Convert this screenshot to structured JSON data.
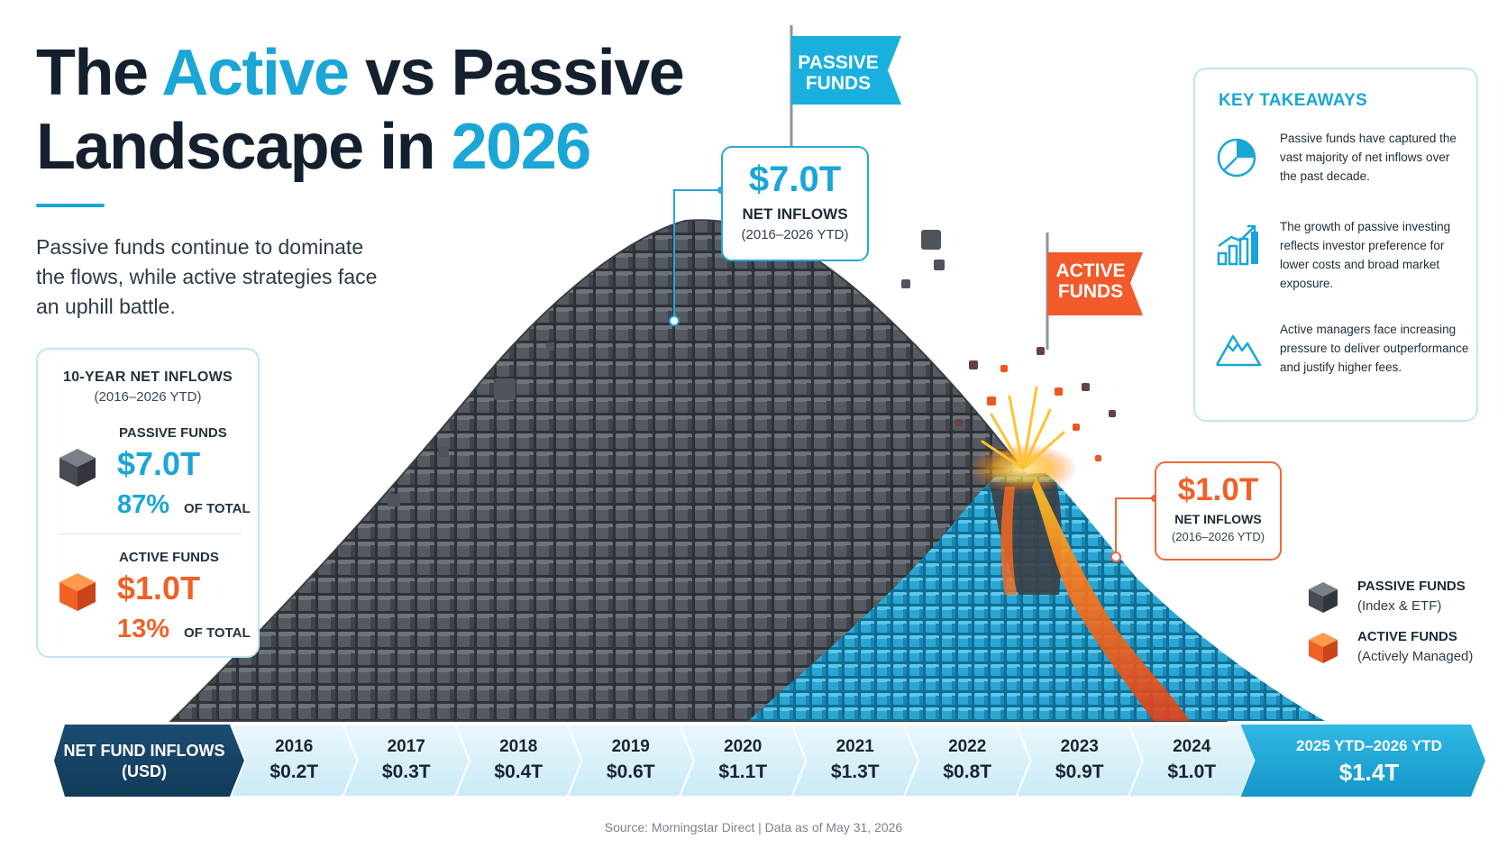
{
  "title": {
    "part1": "The ",
    "accent1": "Active",
    "part2": " vs Passive",
    "line2": "Landscape in ",
    "accent2": "2026"
  },
  "subtitle": "Passive funds continue to dominate the flows, while active strategies face an uphill battle.",
  "stats_card": {
    "heading": "10-YEAR NET INFLOWS",
    "subheading": "(2016–2026 YTD)",
    "passive": {
      "label": "PASSIVE FUNDS",
      "value": "$7.0T",
      "percent": "87%",
      "percent_suffix": "OF TOTAL"
    },
    "active": {
      "label": "ACTIVE FUNDS",
      "value": "$1.0T",
      "percent": "13%",
      "percent_suffix": "OF TOTAL"
    }
  },
  "flags": {
    "passive": "PASSIVE FUNDS",
    "active": "ACTIVE FUNDS"
  },
  "callouts": {
    "passive": {
      "value": "$7.0T",
      "label": "NET INFLOWS",
      "sub": "(2016–2026 YTD)"
    },
    "active": {
      "value": "$1.0T",
      "label": "NET INFLOWS",
      "sub": "(2016–2026 YTD)"
    }
  },
  "takeaways": {
    "title": "KEY TAKEAWAYS",
    "items": [
      {
        "icon": "pie-chart-icon",
        "text": "Passive funds have captured the vast majority of net inflows over the past decade."
      },
      {
        "icon": "bar-growth-icon",
        "text": "The growth of passive investing reflects investor preference for lower costs and broad market exposure."
      },
      {
        "icon": "mountain-icon",
        "text": "Active managers face increasing pressure to deliver outperformance and justify higher fees."
      }
    ]
  },
  "legend": [
    {
      "name": "PASSIVE FUNDS",
      "sub": "(Index & ETF)",
      "color": "#454a52"
    },
    {
      "name": "ACTIVE FUNDS",
      "sub": "(Actively Managed)",
      "color": "#f06127"
    }
  ],
  "timeline": {
    "label": "NET FUND INFLOWS (USD)",
    "years": [
      {
        "year": "2016",
        "value": "$0.2T"
      },
      {
        "year": "2017",
        "value": "$0.3T"
      },
      {
        "year": "2018",
        "value": "$0.4T"
      },
      {
        "year": "2019",
        "value": "$0.6T"
      },
      {
        "year": "2020",
        "value": "$1.1T"
      },
      {
        "year": "2021",
        "value": "$1.3T"
      },
      {
        "year": "2022",
        "value": "$0.8T"
      },
      {
        "year": "2023",
        "value": "$0.9T"
      },
      {
        "year": "2024",
        "value": "$1.0T"
      }
    ],
    "last": {
      "year": "2025 YTD–2026 YTD",
      "value": "$1.4T"
    }
  },
  "footer": "Source: Morningstar Direct  |  Data as of May 31, 2026",
  "colors": {
    "accent": "#1aa6d6",
    "orange": "#f06127",
    "dark": "#14202d",
    "cube_dark": "#454a52"
  }
}
